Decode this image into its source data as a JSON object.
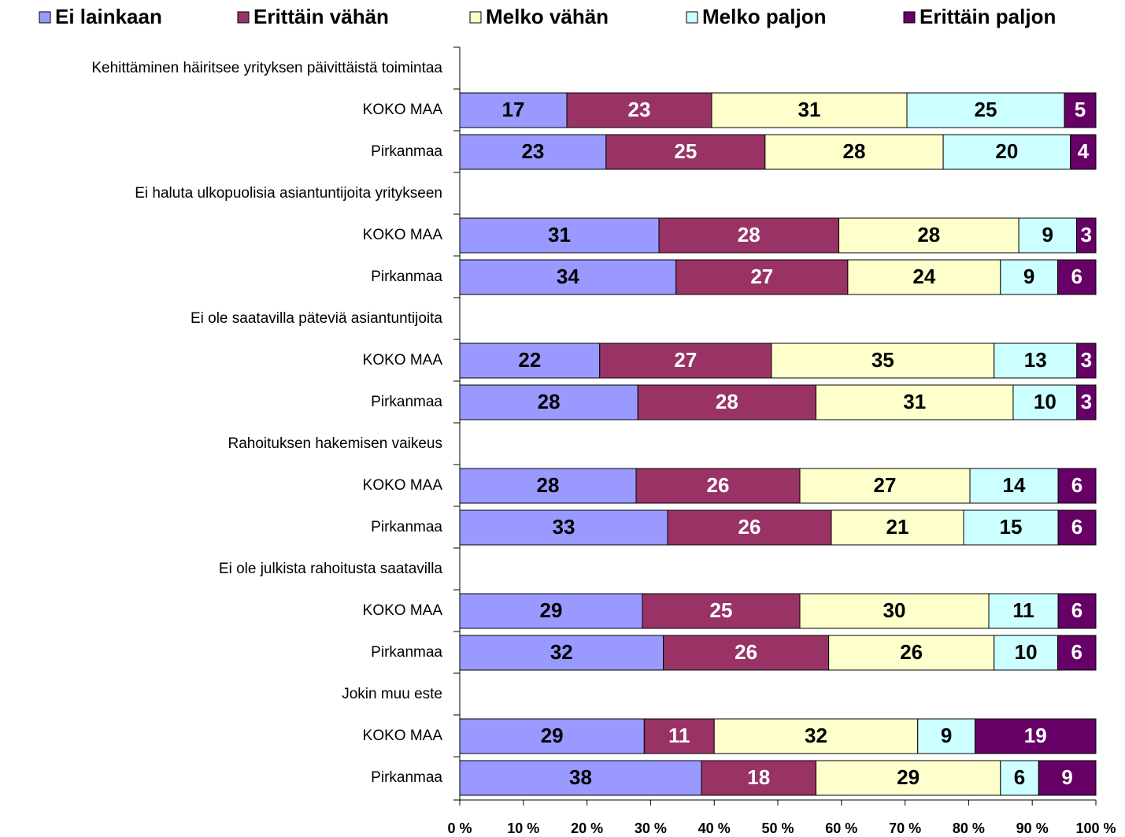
{
  "chart_data": {
    "type": "stacked-percent-barh",
    "categories": [
      "Kehittäminen häiritsee yrityksen päivittäistä toimintaa",
      "KOKO MAA",
      "Pirkanmaa",
      "Ei haluta ulkopuolisia asiantuntijoita yritykseen",
      "KOKO MAA",
      "Pirkanmaa",
      "Ei ole saatavilla päteviä asiantuntijoita",
      "KOKO MAA",
      "Pirkanmaa",
      "Rahoituksen hakemisen vaikeus",
      "KOKO MAA",
      "Pirkanmaa",
      "Ei ole julkista rahoitusta saatavilla",
      "KOKO MAA",
      "Pirkanmaa",
      "Jokin muu este",
      "KOKO MAA",
      "Pirkanmaa"
    ],
    "series": [
      {
        "name": "Ei lainkaan",
        "color": "#9999ff",
        "values": [
          null,
          17,
          23,
          null,
          31,
          34,
          null,
          22,
          28,
          null,
          28,
          33,
          null,
          29,
          32,
          null,
          29,
          38
        ]
      },
      {
        "name": "Erittäin vähän",
        "color": "#993366",
        "values": [
          null,
          23,
          25,
          null,
          28,
          27,
          null,
          27,
          28,
          null,
          26,
          26,
          null,
          25,
          26,
          null,
          11,
          18
        ]
      },
      {
        "name": "Melko vähän",
        "color": "#ffffcc",
        "values": [
          null,
          31,
          28,
          null,
          28,
          24,
          null,
          35,
          31,
          null,
          27,
          21,
          null,
          30,
          26,
          null,
          32,
          29
        ]
      },
      {
        "name": "Melko paljon",
        "color": "#ccffff",
        "values": [
          null,
          25,
          20,
          null,
          9,
          9,
          null,
          13,
          10,
          null,
          14,
          15,
          null,
          11,
          10,
          null,
          9,
          6
        ]
      },
      {
        "name": "Erittäin paljon",
        "color": "#660066",
        "values": [
          null,
          5,
          4,
          null,
          3,
          6,
          null,
          3,
          3,
          null,
          6,
          6,
          null,
          6,
          6,
          null,
          19,
          9
        ]
      }
    ],
    "xlim": [
      0,
      100
    ],
    "xticks": [
      {
        "value": 0,
        "label": "0 %"
      },
      {
        "value": 10,
        "label": "10 %"
      },
      {
        "value": 20,
        "label": "20 %"
      },
      {
        "value": 30,
        "label": "30 %"
      },
      {
        "value": 40,
        "label": "40 %"
      },
      {
        "value": 50,
        "label": "50 %"
      },
      {
        "value": 60,
        "label": "60 %"
      },
      {
        "value": 70,
        "label": "70 %"
      },
      {
        "value": 80,
        "label": "80 %"
      },
      {
        "value": 90,
        "label": "90 %"
      },
      {
        "value": 100,
        "label": "100 %"
      }
    ],
    "legend": "top"
  }
}
